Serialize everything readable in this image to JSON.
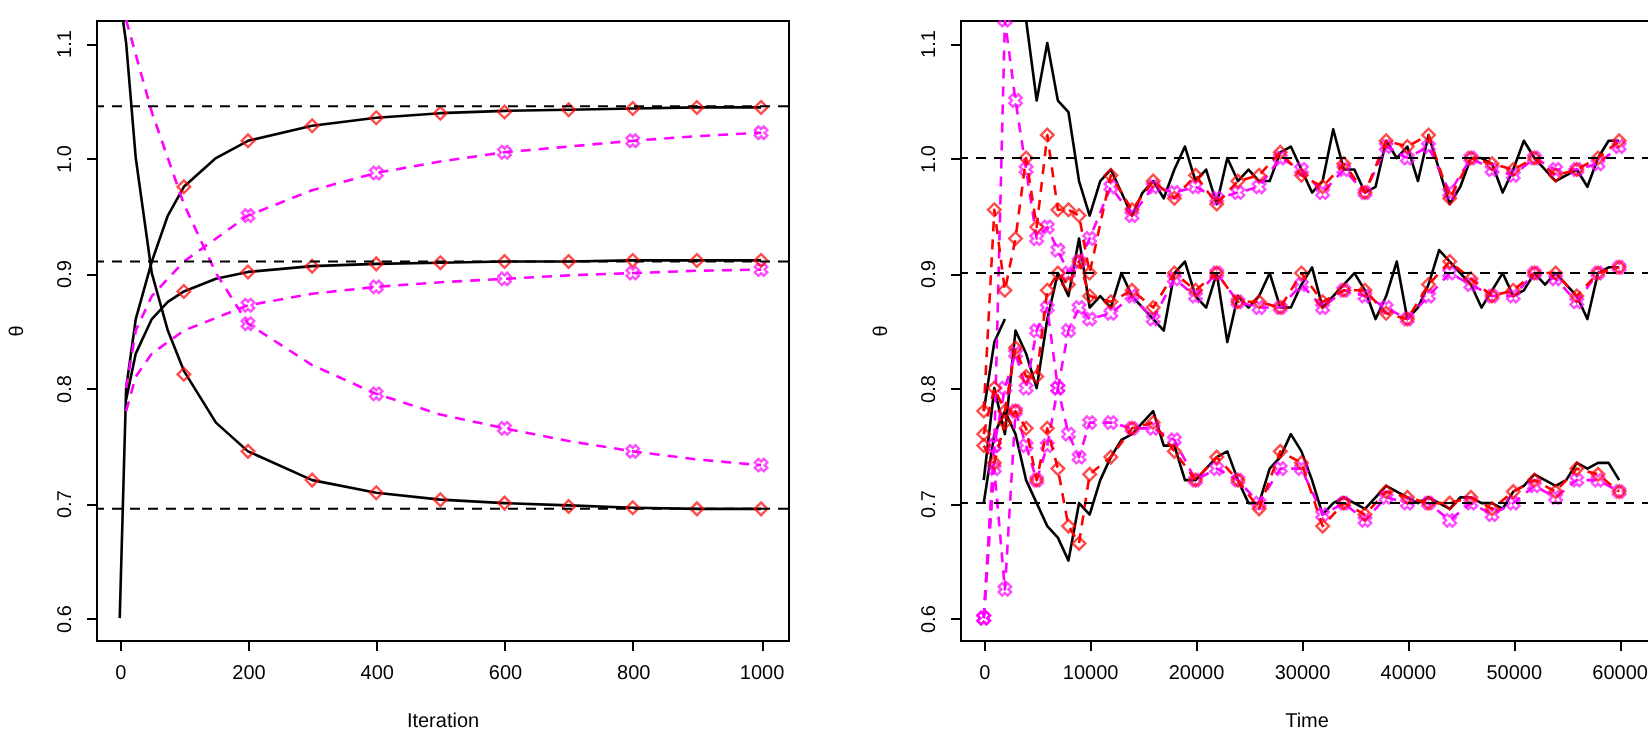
{
  "chart_data": [
    {
      "type": "line",
      "xlabel": "Iteration",
      "ylabel": "θ",
      "xlim": [
        -37,
        1042
      ],
      "ylim": [
        0.581,
        1.12
      ],
      "xticks": [
        0,
        200,
        400,
        600,
        800,
        1000
      ],
      "yticks": [
        0.6,
        0.7,
        0.8,
        0.9,
        {
          "value": 1.0,
          "label": "1.0"
        },
        1.1
      ],
      "ref_lines": [
        {
          "axis": "y",
          "value": 1.045,
          "color": "#000000",
          "line_style": "dashed"
        },
        {
          "axis": "y",
          "value": 0.91,
          "color": "#000000",
          "line_style": "dashed"
        },
        {
          "axis": "y",
          "value": 0.695,
          "color": "#000000",
          "line_style": "dashed"
        }
      ],
      "series": [
        {
          "color": "#000000",
          "line_style": "solid",
          "x": [
            0,
            10,
            25,
            50,
            75,
            100,
            150,
            200,
            300,
            400,
            500,
            600,
            700,
            800,
            900,
            1000
          ],
          "values": [
            0.6,
            0.8,
            0.86,
            0.91,
            0.95,
            0.975,
            1.0,
            1.015,
            1.028,
            1.035,
            1.039,
            1.041,
            1.042,
            1.043,
            1.044,
            1.044
          ]
        },
        {
          "color": "#000000",
          "line_style": "solid",
          "x": [
            10,
            25,
            50,
            75,
            100,
            150,
            200,
            300,
            400,
            500,
            600,
            700,
            800,
            900,
            1000
          ],
          "values": [
            0.79,
            0.83,
            0.86,
            0.875,
            0.884,
            0.895,
            0.901,
            0.906,
            0.908,
            0.909,
            0.91,
            0.91,
            0.911,
            0.911,
            0.911
          ]
        },
        {
          "color": "#000000",
          "line_style": "solid",
          "x": [
            5,
            10,
            25,
            50,
            75,
            100,
            150,
            200,
            300,
            400,
            500,
            600,
            700,
            800,
            900,
            1000
          ],
          "values": [
            1.12,
            1.1,
            1.0,
            0.9,
            0.85,
            0.815,
            0.77,
            0.745,
            0.72,
            0.709,
            0.703,
            0.7,
            0.698,
            0.696,
            0.695,
            0.695
          ]
        },
        {
          "color": "#ff00ff",
          "line_style": "dashed",
          "x": [
            10,
            25,
            50,
            100,
            200,
            300,
            400,
            500,
            600,
            700,
            800,
            900,
            1000
          ],
          "values": [
            0.8,
            0.85,
            0.88,
            0.91,
            0.95,
            0.972,
            0.987,
            0.997,
            1.005,
            1.01,
            1.015,
            1.019,
            1.022
          ]
        },
        {
          "color": "#ff00ff",
          "line_style": "dashed",
          "x": [
            10,
            25,
            50,
            100,
            200,
            300,
            400,
            500,
            600,
            700,
            800,
            900,
            1000
          ],
          "values": [
            0.78,
            0.81,
            0.83,
            0.85,
            0.872,
            0.882,
            0.888,
            0.892,
            0.895,
            0.898,
            0.9,
            0.902,
            0.903
          ]
        },
        {
          "color": "#ff00ff",
          "line_style": "dashed",
          "x": [
            10,
            25,
            50,
            100,
            150,
            200,
            300,
            400,
            500,
            600,
            700,
            800,
            900,
            1000
          ],
          "values": [
            1.12,
            1.09,
            1.04,
            0.96,
            0.9,
            0.856,
            0.82,
            0.795,
            0.777,
            0.765,
            0.754,
            0.745,
            0.738,
            0.733
          ]
        },
        {
          "type": "scatter",
          "marker": "cross",
          "color": "#ff00ff",
          "x": [
            200,
            400,
            600,
            800,
            1000
          ],
          "values": [
            0.95,
            0.987,
            1.005,
            1.015,
            1.022
          ]
        },
        {
          "type": "scatter",
          "marker": "cross",
          "color": "#ff00ff",
          "x": [
            200,
            400,
            600,
            800,
            1000
          ],
          "values": [
            0.872,
            0.888,
            0.895,
            0.9,
            0.903
          ]
        },
        {
          "type": "scatter",
          "marker": "cross",
          "color": "#ff00ff",
          "x": [
            200,
            400,
            600,
            800,
            1000
          ],
          "values": [
            0.856,
            0.795,
            0.765,
            0.745,
            0.733
          ]
        },
        {
          "type": "scatter",
          "marker": "diamond",
          "color": "#ff0000",
          "x": [
            100,
            200,
            300,
            400,
            500,
            600,
            700,
            800,
            900,
            1000
          ],
          "values": [
            0.975,
            1.015,
            1.028,
            1.035,
            1.039,
            1.04,
            1.042,
            1.043,
            1.044,
            1.044
          ]
        },
        {
          "type": "scatter",
          "marker": "diamond",
          "color": "#ff0000",
          "x": [
            100,
            200,
            300,
            400,
            500,
            600,
            700,
            800,
            900,
            1000
          ],
          "values": [
            0.884,
            0.901,
            0.906,
            0.908,
            0.909,
            0.91,
            0.91,
            0.911,
            0.911,
            0.911
          ]
        },
        {
          "type": "scatter",
          "marker": "diamond",
          "color": "#ff0000",
          "x": [
            100,
            200,
            300,
            400,
            500,
            600,
            700,
            800,
            900,
            1000
          ],
          "values": [
            0.812,
            0.745,
            0.72,
            0.709,
            0.703,
            0.7,
            0.697,
            0.696,
            0.695,
            0.695
          ]
        }
      ]
    },
    {
      "type": "line",
      "xlabel": "Time",
      "ylabel": "θ",
      "xlim": [
        -2241,
        63100
      ],
      "ylim": [
        0.581,
        1.12
      ],
      "xticks": [
        0,
        10000,
        20000,
        30000,
        40000,
        50000,
        60000
      ],
      "yticks": [
        0.6,
        0.7,
        0.8,
        0.9,
        {
          "value": 1.0,
          "label": "1.0"
        },
        1.1
      ],
      "ref_lines": [
        {
          "axis": "y",
          "value": 1.0,
          "color": "#000000",
          "line_style": "dashed"
        },
        {
          "axis": "y",
          "value": 0.9,
          "color": "#000000",
          "line_style": "dashed"
        },
        {
          "axis": "y",
          "value": 0.7,
          "color": "#000000",
          "line_style": "dashed"
        }
      ],
      "x": [
        0,
        1000,
        2000,
        3000,
        4000,
        5000,
        6000,
        7000,
        8000,
        9000,
        10000,
        11000,
        12000,
        13000,
        14000,
        15000,
        16000,
        17000,
        18000,
        19000,
        20000,
        21000,
        22000,
        23000,
        24000,
        25000,
        26000,
        27000,
        28000,
        29000,
        30000,
        31000,
        32000,
        33000,
        34000,
        35000,
        36000,
        37000,
        38000,
        39000,
        40000,
        41000,
        42000,
        43000,
        44000,
        45000,
        46000,
        47000,
        48000,
        49000,
        50000,
        51000,
        52000,
        53000,
        54000,
        55000,
        56000,
        57000,
        58000,
        59000,
        60000
      ],
      "series": [
        {
          "color": "#000000",
          "line_style": "solid",
          "values": [
            0.78,
            0.84,
            0.86,
            null,
            1.12,
            1.05,
            1.1,
            1.05,
            1.04,
            0.98,
            0.95,
            0.98,
            0.99,
            0.97,
            0.95,
            0.97,
            0.98,
            0.965,
            0.99,
            1.01,
            0.98,
            0.99,
            0.96,
            1.0,
            0.98,
            0.99,
            0.98,
            0.98,
            1.005,
            1.01,
            0.99,
            0.97,
            0.98,
            1.025,
            0.99,
            0.99,
            0.97,
            0.975,
            1.015,
            1.0,
            1.01,
            0.98,
            1.02,
            0.99,
            0.96,
            0.975,
            1.0,
            1.0,
            0.995,
            0.97,
            0.99,
            1.015,
            1.0,
            0.99,
            0.98,
            0.985,
            0.99,
            0.975,
            1.0,
            1.015,
            1.015
          ]
        },
        {
          "color": "#000000",
          "line_style": "solid",
          "values": [
            0.72,
            0.8,
            0.76,
            0.85,
            0.83,
            0.8,
            0.86,
            0.9,
            0.88,
            0.93,
            0.87,
            0.88,
            0.87,
            0.9,
            0.88,
            0.87,
            0.86,
            0.85,
            0.9,
            0.91,
            0.88,
            0.87,
            0.9,
            0.84,
            0.88,
            0.87,
            0.88,
            0.9,
            0.87,
            0.87,
            0.89,
            0.905,
            0.87,
            0.88,
            0.89,
            0.9,
            0.885,
            0.86,
            0.88,
            0.91,
            0.86,
            0.87,
            0.89,
            0.92,
            0.91,
            0.9,
            0.89,
            0.87,
            0.885,
            0.9,
            0.88,
            0.885,
            0.9,
            0.89,
            0.9,
            0.89,
            0.88,
            0.86,
            0.9,
            0.905,
            0.905
          ]
        },
        {
          "color": "#000000",
          "line_style": "solid",
          "values": [
            0.7,
            0.76,
            0.78,
            0.76,
            0.72,
            0.7,
            0.68,
            0.67,
            0.65,
            0.7,
            0.69,
            0.72,
            0.74,
            0.755,
            0.76,
            0.77,
            0.78,
            0.75,
            0.75,
            0.72,
            0.72,
            0.73,
            0.74,
            0.745,
            0.72,
            0.7,
            0.7,
            0.73,
            0.74,
            0.76,
            0.745,
            0.72,
            0.69,
            0.7,
            0.705,
            0.7,
            0.695,
            0.705,
            0.715,
            0.71,
            0.705,
            0.7,
            0.705,
            0.7,
            0.695,
            0.705,
            0.705,
            0.7,
            0.7,
            0.695,
            0.71,
            0.715,
            0.725,
            0.72,
            0.715,
            0.72,
            0.735,
            0.73,
            0.735,
            0.735,
            0.72
          ]
        },
        {
          "color": "#ff00ff",
          "line_style": "dashed",
          "marker": "cross",
          "x": [
            0,
            1000,
            2000,
            3000,
            4000,
            5000,
            6000,
            7000,
            8000,
            9000,
            10000,
            12000,
            14000,
            16000,
            18000,
            20000,
            22000,
            24000,
            26000,
            28000,
            30000,
            32000,
            34000,
            36000,
            38000,
            40000,
            42000,
            44000,
            46000,
            48000,
            50000,
            52000,
            54000,
            56000,
            58000,
            60000
          ],
          "values": [
            0.6,
            0.75,
            1.12,
            1.05,
            0.99,
            0.93,
            0.94,
            0.92,
            0.9,
            0.91,
            0.93,
            0.975,
            0.95,
            0.975,
            0.97,
            0.975,
            0.965,
            0.97,
            0.975,
            1.0,
            0.99,
            0.97,
            0.99,
            0.97,
            1.01,
            1.0,
            1.01,
            0.97,
            1.0,
            0.99,
            0.985,
            1.0,
            0.99,
            0.99,
            0.995,
            1.01
          ]
        },
        {
          "color": "#ff00ff",
          "line_style": "dashed",
          "marker": "cross",
          "x": [
            0,
            1000,
            2000,
            3000,
            4000,
            5000,
            6000,
            7000,
            8000,
            9000,
            10000,
            12000,
            14000,
            16000,
            18000,
            20000,
            22000,
            24000,
            26000,
            28000,
            30000,
            32000,
            34000,
            36000,
            38000,
            40000,
            42000,
            44000,
            46000,
            48000,
            50000,
            52000,
            54000,
            56000,
            58000,
            60000
          ],
          "values": [
            0.6,
            0.75,
            0.8,
            0.83,
            0.8,
            0.85,
            0.87,
            0.8,
            0.85,
            0.87,
            0.86,
            0.865,
            0.88,
            0.86,
            0.895,
            0.88,
            0.9,
            0.875,
            0.87,
            0.87,
            0.89,
            0.87,
            0.885,
            0.88,
            0.87,
            0.86,
            0.88,
            0.9,
            0.89,
            0.88,
            0.88,
            0.9,
            0.895,
            0.875,
            0.9,
            0.905
          ]
        },
        {
          "color": "#ff00ff",
          "line_style": "dashed",
          "marker": "cross",
          "x": [
            0,
            1000,
            2000,
            3000,
            4000,
            5000,
            6000,
            7000,
            8000,
            9000,
            10000,
            12000,
            14000,
            16000,
            18000,
            20000,
            22000,
            24000,
            26000,
            28000,
            30000,
            32000,
            34000,
            36000,
            38000,
            40000,
            42000,
            44000,
            46000,
            48000,
            50000,
            52000,
            54000,
            56000,
            58000,
            60000
          ],
          "values": [
            0.6,
            0.73,
            0.625,
            0.78,
            0.75,
            0.72,
            0.75,
            0.8,
            0.76,
            0.74,
            0.77,
            0.77,
            0.765,
            0.765,
            0.755,
            0.72,
            0.73,
            0.72,
            0.7,
            0.73,
            0.73,
            0.69,
            0.7,
            0.685,
            0.705,
            0.7,
            0.7,
            0.685,
            0.7,
            0.69,
            0.7,
            0.715,
            0.705,
            0.72,
            0.72,
            0.71
          ]
        },
        {
          "color": "#ff0000",
          "line_style": "dashed",
          "marker": "diamond",
          "x": [
            0,
            1000,
            2000,
            3000,
            4000,
            5000,
            6000,
            7000,
            8000,
            9000,
            10000,
            12000,
            14000,
            16000,
            18000,
            20000,
            22000,
            24000,
            26000,
            28000,
            30000,
            32000,
            34000,
            36000,
            38000,
            40000,
            42000,
            44000,
            46000,
            48000,
            50000,
            52000,
            54000,
            56000,
            58000,
            60000
          ],
          "values": [
            0.78,
            0.955,
            0.885,
            0.93,
            1.0,
            0.94,
            1.02,
            0.955,
            0.955,
            0.95,
            0.9,
            0.985,
            0.955,
            0.98,
            0.965,
            0.985,
            0.96,
            0.98,
            0.985,
            1.005,
            0.985,
            0.975,
            0.995,
            0.97,
            1.015,
            1.01,
            1.02,
            0.965,
            1.0,
            0.995,
            0.99,
            1.0,
            0.985,
            0.99,
            1.0,
            1.015
          ]
        },
        {
          "color": "#ff0000",
          "line_style": "dashed",
          "marker": "diamond",
          "x": [
            0,
            1000,
            2000,
            3000,
            4000,
            5000,
            6000,
            7000,
            8000,
            9000,
            10000,
            12000,
            14000,
            16000,
            18000,
            20000,
            22000,
            24000,
            26000,
            28000,
            30000,
            32000,
            34000,
            36000,
            38000,
            40000,
            42000,
            44000,
            46000,
            48000,
            50000,
            52000,
            54000,
            56000,
            58000,
            60000
          ],
          "values": [
            0.76,
            0.8,
            0.78,
            0.835,
            0.81,
            0.81,
            0.885,
            0.9,
            0.89,
            0.91,
            0.88,
            0.875,
            0.885,
            0.87,
            0.9,
            0.885,
            0.9,
            0.875,
            0.875,
            0.87,
            0.9,
            0.875,
            0.885,
            0.885,
            0.865,
            0.86,
            0.89,
            0.91,
            0.895,
            0.88,
            0.885,
            0.9,
            0.9,
            0.88,
            0.9,
            0.905
          ]
        },
        {
          "color": "#ff0000",
          "line_style": "dashed",
          "marker": "diamond",
          "x": [
            0,
            1000,
            2000,
            3000,
            4000,
            5000,
            6000,
            7000,
            8000,
            9000,
            10000,
            12000,
            14000,
            16000,
            18000,
            20000,
            22000,
            24000,
            26000,
            28000,
            30000,
            32000,
            34000,
            36000,
            38000,
            40000,
            42000,
            44000,
            46000,
            48000,
            50000,
            52000,
            54000,
            56000,
            58000,
            60000
          ],
          "values": [
            0.75,
            0.735,
            0.77,
            0.78,
            0.765,
            0.72,
            0.765,
            0.73,
            0.68,
            0.665,
            0.725,
            0.74,
            0.765,
            0.77,
            0.745,
            0.72,
            0.74,
            0.72,
            0.695,
            0.745,
            0.735,
            0.68,
            0.7,
            0.69,
            0.71,
            0.705,
            0.7,
            0.7,
            0.705,
            0.695,
            0.71,
            0.72,
            0.71,
            0.73,
            0.725,
            0.71
          ]
        }
      ]
    }
  ]
}
